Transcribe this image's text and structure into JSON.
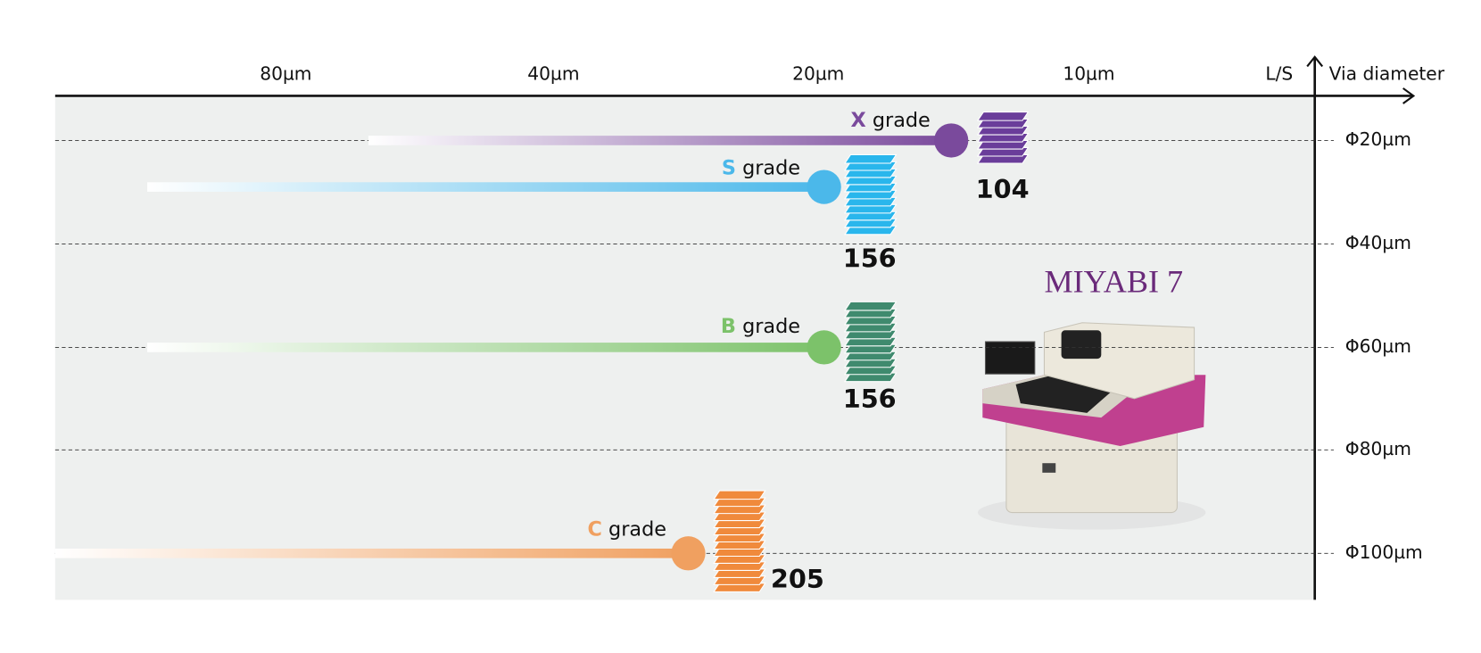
{
  "axis": {
    "top_labels": [
      "80µm",
      "40µm",
      "20µm",
      "10µm"
    ],
    "ls_label": "L/S",
    "via_label": "Via diameter",
    "right_labels": [
      "Φ20µm",
      "Φ40µm",
      "Φ60µm",
      "Φ80µm",
      "Φ100µm"
    ]
  },
  "grades": [
    {
      "letter": "X",
      "word": "grade",
      "color": "#7a4a9c",
      "stack_color": "#6a3d9a",
      "count": 104
    },
    {
      "letter": "S",
      "word": "grade",
      "color": "#4bb8ea",
      "stack_color": "#29b6ec",
      "count": 156
    },
    {
      "letter": "B",
      "word": "grade",
      "color": "#7cc26a",
      "stack_color": "#3f8a6e",
      "count": 156
    },
    {
      "letter": "C",
      "word": "grade",
      "color": "#f0a060",
      "stack_color": "#f08a3c",
      "count": 205
    }
  ],
  "product": "MIYABI 7"
}
